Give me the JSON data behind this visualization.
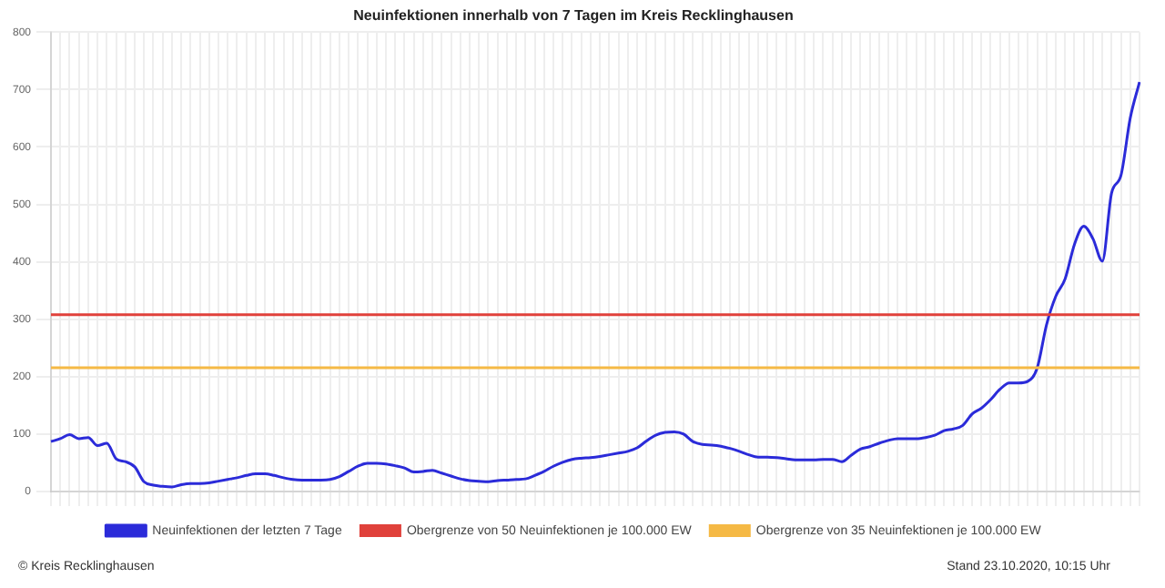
{
  "chart_data": {
    "type": "line",
    "title": "Neuinfektionen innerhalb von 7 Tagen im Kreis Recklinghausen",
    "categories": [
      null,
      null,
      null,
      null,
      null,
      null,
      null,
      null,
      null,
      null,
      null,
      null,
      null,
      null,
      null,
      null,
      null,
      null,
      null,
      null,
      null,
      null,
      null,
      null,
      null,
      null,
      null,
      null,
      null,
      null,
      null,
      null,
      null,
      null,
      null,
      null,
      null,
      null,
      null,
      null,
      null,
      null,
      null,
      null,
      null,
      null,
      null,
      null,
      null,
      null,
      null,
      null,
      null,
      null,
      null,
      null,
      null,
      null,
      null,
      null,
      null,
      null,
      null,
      null,
      null,
      null,
      null,
      null,
      null,
      null,
      null,
      null,
      null,
      null,
      null,
      null,
      null,
      null,
      null,
      null,
      null,
      null,
      null,
      null,
      null,
      null,
      null,
      null,
      null,
      null,
      null,
      null,
      null,
      null,
      null,
      null,
      null,
      null,
      null,
      null,
      null,
      null,
      null,
      null,
      null,
      null,
      null,
      null,
      null,
      null,
      null,
      null,
      null,
      null,
      null,
      null,
      null,
      null
    ],
    "series": [
      {
        "name": "Neuinfektionen der letzten 7 Tage",
        "color": "#2b2bd9",
        "values": [
          87,
          92,
          99,
          92,
          94,
          80,
          84,
          57,
          52,
          43,
          17,
          11,
          9,
          8,
          12,
          14,
          14,
          15,
          18,
          21,
          24,
          28,
          31,
          31,
          28,
          24,
          21,
          20,
          20,
          20,
          21,
          26,
          35,
          44,
          49,
          49,
          48,
          45,
          41,
          34,
          35,
          37,
          32,
          27,
          22,
          19,
          18,
          17,
          19,
          20,
          21,
          22,
          28,
          35,
          44,
          51,
          56,
          58,
          59,
          61,
          64,
          67,
          70,
          76,
          88,
          98,
          103,
          104,
          100,
          87,
          82,
          81,
          79,
          75,
          70,
          64,
          60,
          60,
          59,
          57,
          55,
          55,
          55,
          56,
          56,
          52,
          63,
          74,
          78,
          84,
          89,
          92,
          92,
          92,
          94,
          98,
          106,
          109,
          115,
          135,
          145,
          160,
          178,
          189,
          189,
          192,
          215,
          290,
          340,
          370,
          430,
          462,
          440,
          401,
          520,
          550,
          650,
          713
        ]
      }
    ],
    "ref_lines": [
      {
        "axis": "y",
        "value": 307.8,
        "label": "Obergrenze von 50 Neuinfektionen je 100.000 EW",
        "color": "#e0413b"
      },
      {
        "axis": "y",
        "value": 215.4,
        "label": "Obergrenze von 35 Neuinfektionen je 100.000 EW",
        "color": "#f5b945"
      }
    ],
    "ylim": [
      0,
      800
    ],
    "yticks": [
      0,
      100,
      200,
      300,
      400,
      500,
      600,
      700,
      800
    ],
    "grid": true,
    "legend": "bottom",
    "marker": "none",
    "line_style": "solid",
    "tick_labels": "y",
    "annotations": [
      "© Kreis Recklinghausen",
      "Stand 23.10.2020, 10:15 Uhr"
    ]
  }
}
